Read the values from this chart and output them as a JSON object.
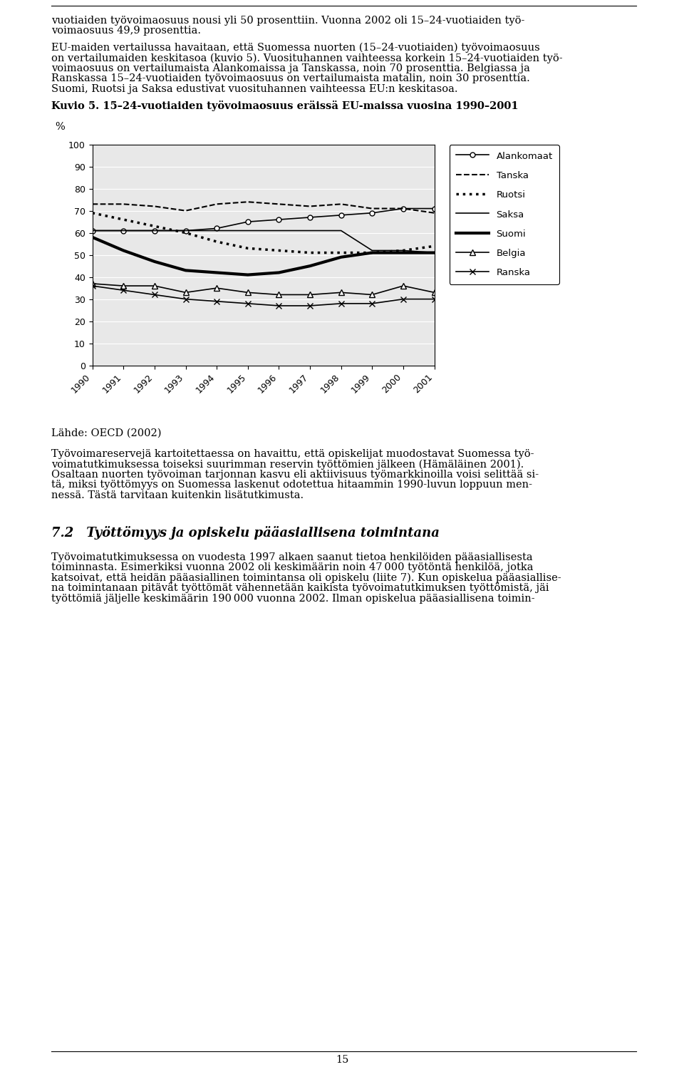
{
  "title": "Kuvio 5. 15–24-vuotiaiden työvoimaosuus eräissä EU-maissa vuosina 1990–2001",
  "ylabel": "%",
  "years": [
    1990,
    1991,
    1992,
    1993,
    1994,
    1995,
    1996,
    1997,
    1998,
    1999,
    2000,
    2001
  ],
  "series": {
    "Alankomaat": [
      61,
      61,
      61,
      61,
      62,
      65,
      66,
      67,
      68,
      69,
      71,
      71
    ],
    "Tanska": [
      73,
      73,
      72,
      70,
      73,
      74,
      73,
      72,
      73,
      71,
      71,
      69
    ],
    "Ruotsi": [
      69,
      66,
      63,
      60,
      56,
      53,
      52,
      51,
      51,
      51,
      52,
      54
    ],
    "Saksa": [
      61,
      61,
      61,
      61,
      61,
      61,
      61,
      61,
      61,
      52,
      52,
      51
    ],
    "Suomi": [
      58,
      52,
      47,
      43,
      42,
      41,
      42,
      45,
      49,
      51,
      51,
      51
    ],
    "Belgia": [
      37,
      36,
      36,
      33,
      35,
      33,
      32,
      32,
      33,
      32,
      36,
      33
    ],
    "Ranska": [
      36,
      34,
      32,
      30,
      29,
      28,
      27,
      27,
      28,
      28,
      30,
      30
    ]
  },
  "ylim": [
    0,
    100
  ],
  "yticks": [
    0,
    10,
    20,
    30,
    40,
    50,
    60,
    70,
    80,
    90,
    100
  ],
  "background_color": "#ffffff",
  "plot_bg_color": "#e8e8e8",
  "legend_order": [
    "Alankomaat",
    "Tanska",
    "Ruotsi",
    "Saksa",
    "Suomi",
    "Belgia",
    "Ranska"
  ],
  "line_styles": {
    "Alankomaat": {
      "ls": "-",
      "marker": "o",
      "lw": 1.2,
      "ms": 5,
      "mfc": "white"
    },
    "Tanska": {
      "ls": "--",
      "marker": null,
      "lw": 1.5,
      "ms": 0,
      "mfc": "black"
    },
    "Ruotsi": {
      "ls": ":",
      "marker": null,
      "lw": 2.5,
      "ms": 0,
      "mfc": "black"
    },
    "Saksa": {
      "ls": "-",
      "marker": null,
      "lw": 1.2,
      "ms": 0,
      "mfc": "black"
    },
    "Suomi": {
      "ls": "-",
      "marker": null,
      "lw": 3.0,
      "ms": 0,
      "mfc": "black"
    },
    "Belgia": {
      "ls": "-",
      "marker": "^",
      "lw": 1.2,
      "ms": 6,
      "mfc": "white"
    },
    "Ranska": {
      "ls": "-",
      "marker": "x",
      "lw": 1.2,
      "ms": 6,
      "mfc": "black"
    }
  },
  "top_lines": [
    "vuotiaiden työvoimaosuus nousi yli 50 prosenttiin. Vuonna 2002 oli 15–24-vuotiaiden työ-",
    "voimaosuus 49,9 prosenttia."
  ],
  "para1": [
    "EU-maiden vertailussa havaitaan, että Suomessa nuorten (15–24-vuotiaiden) työvoimaosuus",
    "on vertailumaiden keskitasoa (kuvio 5). Vuosituhannen vaihteessa korkein 15–24-vuotiaiden työ-",
    "voimaosuus on vertailumaista Alankomaissa ja Tanskassa, noin 70 prosenttia. Belgiassa ja",
    "Ranskassa 15–24-vuotiaiden työvoimaosuus on vertailumaista matalin, noin 30 prosenttia.",
    "Suomi, Ruotsi ja Saksa edustivat vuosituhannen vaihteessa EU:n keskitasoa."
  ],
  "source": "Lähde: OECD (2002)",
  "para2": [
    "Työvoimareservejä kartoitettaessa on havaittu, että opiskelijat muodostavat Suomessa työ-",
    "voimatutkimuksessa toiseksi suurimman reservin työttömien jälkeen (Hämäläinen 2001).",
    "Osaltaan nuorten työvoiman tarjonnan kasvu eli aktiivisuus työmarkkinoilla voisi selittää si-",
    "tä, miksi työttömyys on Suomessa laskenut odotettua hitaammin 1990-luvun loppuun men-",
    "nessä. Tästä tarvitaan kuitenkin lisätutkimusta."
  ],
  "section_title": "7.2 Työttömyys ja opiskelu pääasiallisena toimintana",
  "para3": [
    "Työvoimatutkimuksessa on vuodesta 1997 alkaen saanut tietoa henkilöiden pääasiallisesta",
    "toiminnasta. Esimerkiksi vuonna 2002 oli keskimäärin noin 47 000 työtöntä henkilöä, jotka",
    "katsoivat, että heidän pääasiallinen toimintansa oli opiskelu (liite 7). Kun opiskelua pääasiallise-",
    "na toimintanaan pitävät työttömät vähennetään kaikista työvoimatutkimuksen työttömistä, jäi",
    "työttömiä jäljelle keskimäärin 190 000 vuonna 2002. Ilman opiskelua pääasiallisena toimin-"
  ],
  "page_number": "15"
}
